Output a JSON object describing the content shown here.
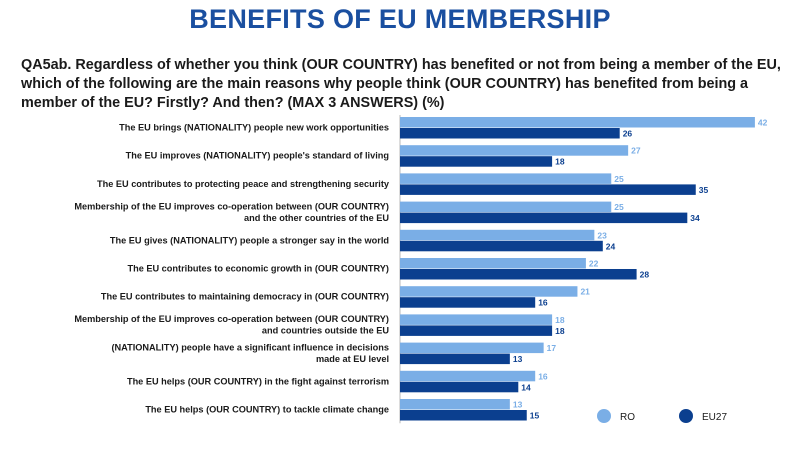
{
  "header": {
    "title": "BENEFITS OF EU MEMBERSHIP",
    "question": "QA5ab. Regardless of whether you think (OUR COUNTRY) has benefited or not from being a member of the EU, which of the following are the main reasons why people think (OUR COUNTRY) has benefited from being a member of the EU? Firstly? And then? (MAX 3 ANSWERS) (%)"
  },
  "colors": {
    "title": "#1a4fa0",
    "ro": "#7aaee6",
    "eu27": "#0b3f8f",
    "axis": "#b8b8b8"
  },
  "chart_data": {
    "type": "bar",
    "orientation": "horizontal",
    "categories": [
      [
        "The EU brings (NATIONALITY) people new work opportunities"
      ],
      [
        "The EU improves (NATIONALITY) people's standard of living"
      ],
      [
        "The EU contributes to protecting peace and strengthening security"
      ],
      [
        "Membership of the EU improves co-operation between (OUR COUNTRY)",
        "and the other countries of the EU"
      ],
      [
        "The EU gives (NATIONALITY) people a stronger say in the world"
      ],
      [
        "The EU contributes to economic growth in (OUR COUNTRY)"
      ],
      [
        "The EU contributes to maintaining democracy in (OUR COUNTRY)"
      ],
      [
        "Membership of the EU improves co-operation between (OUR COUNTRY)",
        "and countries outside the EU"
      ],
      [
        "(NATIONALITY) people have a significant influence in decisions",
        "made at EU level"
      ],
      [
        "The EU helps (OUR COUNTRY) in the fight against terrorism"
      ],
      [
        "The EU helps (OUR COUNTRY) to tackle climate change"
      ]
    ],
    "series": [
      {
        "name": "RO",
        "values": [
          42,
          27,
          25,
          25,
          23,
          22,
          21,
          18,
          17,
          16,
          13
        ]
      },
      {
        "name": "EU27",
        "values": [
          26,
          18,
          35,
          34,
          24,
          28,
          16,
          18,
          13,
          14,
          15
        ]
      }
    ],
    "xlim": [
      0,
      42
    ],
    "legend": "bottom-right"
  }
}
